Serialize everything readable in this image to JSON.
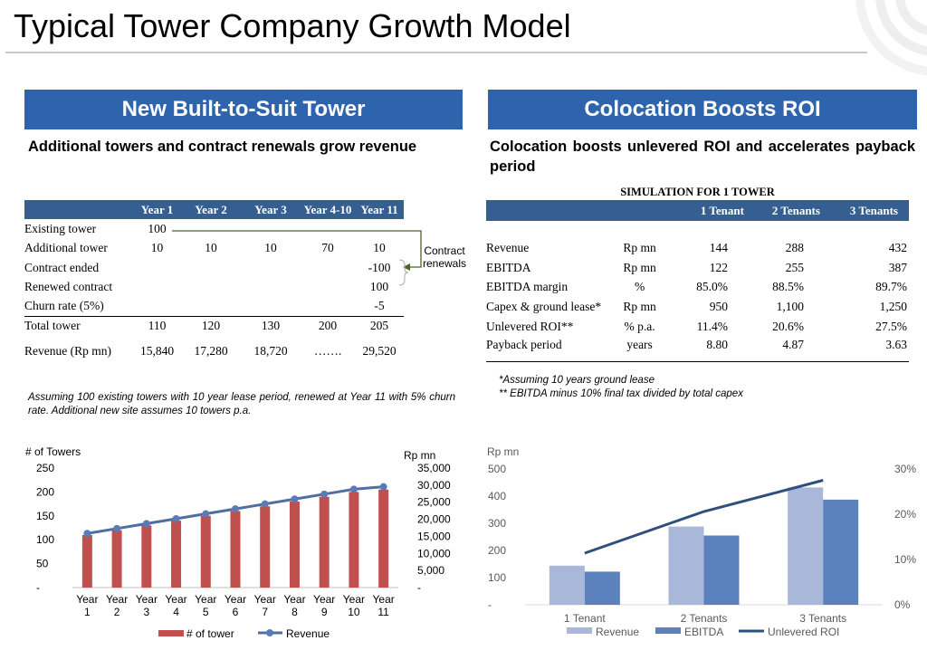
{
  "title": "Typical Tower Company Growth Model",
  "left": {
    "banner": "New Built-to-Suit Tower",
    "subtitle": "Additional towers and contract renewals grow revenue",
    "table": {
      "headers": [
        "",
        "Year 1",
        "Year 2",
        "Year 3",
        "Year 4-10",
        "Year 11"
      ],
      "rows": [
        [
          "Existing tower",
          "100",
          "",
          "",
          "",
          ""
        ],
        [
          "Additional tower",
          "10",
          "10",
          "10",
          "70",
          "10"
        ],
        [
          "Contract ended",
          "",
          "",
          "",
          "",
          "-100"
        ],
        [
          "Renewed contract",
          "",
          "",
          "",
          "",
          "100"
        ],
        [
          "Churn rate (5%)",
          "",
          "",
          "",
          "",
          "-5"
        ],
        [
          "Total tower",
          "110",
          "120",
          "130",
          "200",
          "205"
        ],
        [
          "Revenue (Rp mn)",
          "15,840",
          "17,280",
          "18,720",
          "…….",
          "29,520"
        ]
      ]
    },
    "annotation": "Contract renewals",
    "note": "Assuming 100 existing towers with 10 year lease period, renewed at Year 11 with 5% churn rate. Additional new site assumes 10 towers p.a."
  },
  "right": {
    "banner": "Colocation Boosts ROI",
    "subtitle": "Colocation boosts unlevered ROI and accelerates payback period",
    "table_title": "SIMULATION FOR 1 TOWER",
    "table": {
      "headers": [
        "",
        "",
        "1 Tenant",
        "2 Tenants",
        "3 Tenants"
      ],
      "rows": [
        [
          "Revenue",
          "Rp mn",
          "144",
          "288",
          "432"
        ],
        [
          "EBITDA",
          "Rp mn",
          "122",
          "255",
          "387"
        ],
        [
          "EBITDA margin",
          "%",
          "85.0%",
          "88.5%",
          "89.7%"
        ],
        [
          "Capex & ground lease*",
          "Rp mn",
          "950",
          "1,100",
          "1,250"
        ],
        [
          "Unlevered ROI**",
          "% p.a.",
          "11.4%",
          "20.6%",
          "27.5%"
        ],
        [
          "Payback period",
          "years",
          "8.80",
          "4.87",
          "3.63"
        ]
      ]
    },
    "notes": [
      "*Assuming 10 years ground lease",
      "** EBITDA minus 10% final tax divided by total capex"
    ]
  },
  "colors": {
    "banner": "#2e63ae",
    "table_header": "#355f91",
    "tower_bar": "#c0504d",
    "revenue_line": "#4f6fa3",
    "light_bar": "#a9b7d9",
    "mid_bar": "#5b82bd",
    "roi_line": "#2f4f7f"
  },
  "chart_data": [
    {
      "type": "bar",
      "categories": [
        "Year 1",
        "Year 2",
        "Year 3",
        "Year 4",
        "Year 5",
        "Year 6",
        "Year 7",
        "Year 8",
        "Year 9",
        "Year 10",
        "Year 11"
      ],
      "series": [
        {
          "name": "# of tower",
          "type": "bar",
          "axis": "left",
          "values": [
            110,
            120,
            130,
            140,
            150,
            160,
            170,
            180,
            190,
            200,
            205
          ]
        },
        {
          "name": "Revenue",
          "type": "line",
          "axis": "right",
          "values": [
            15840,
            17280,
            18720,
            20160,
            21600,
            23040,
            24480,
            25920,
            27360,
            28800,
            29520
          ]
        }
      ],
      "ylabel": "# of Towers",
      "y2label": "Rp mn",
      "yticks": [
        "250",
        "200",
        "150",
        "100",
        "50",
        "-"
      ],
      "y2ticks": [
        "35,000",
        "30,000",
        "25,000",
        "20,000",
        "15,000",
        "10,000",
        "5,000",
        "-"
      ],
      "ylim": [
        0,
        250
      ],
      "y2lim": [
        0,
        35000
      ],
      "legend": "bottom"
    },
    {
      "type": "bar",
      "categories": [
        "1 Tenant",
        "2 Tenants",
        "3 Tenants"
      ],
      "series": [
        {
          "name": "Revenue",
          "type": "bar",
          "axis": "left",
          "values": [
            144,
            288,
            432
          ]
        },
        {
          "name": "EBITDA",
          "type": "bar",
          "axis": "left",
          "values": [
            122,
            255,
            387
          ]
        },
        {
          "name": "Unlevered ROI",
          "type": "line",
          "axis": "right",
          "values": [
            11.4,
            20.6,
            27.5
          ]
        }
      ],
      "ylabel": "Rp mn",
      "yticks": [
        "500",
        "400",
        "300",
        "200",
        "100",
        "-"
      ],
      "y2ticks": [
        "30%",
        "20%",
        "10%",
        "0%"
      ],
      "ylim": [
        0,
        500
      ],
      "y2lim": [
        0,
        30
      ],
      "legend": "bottom"
    }
  ]
}
